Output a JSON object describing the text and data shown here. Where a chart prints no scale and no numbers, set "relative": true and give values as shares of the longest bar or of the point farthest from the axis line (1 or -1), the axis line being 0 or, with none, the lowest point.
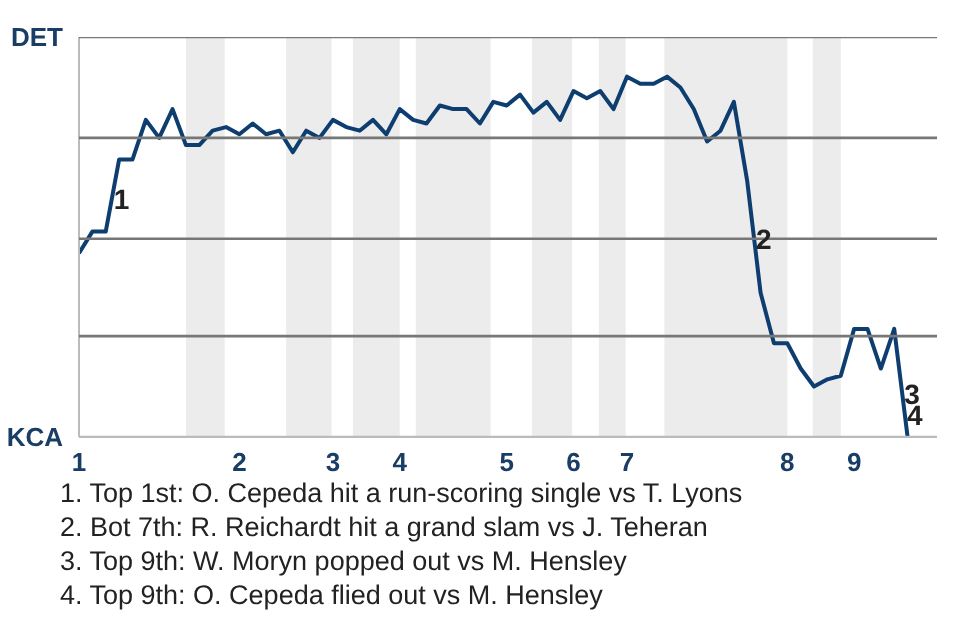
{
  "chart_data": {
    "type": "line",
    "relative": true,
    "categories": [
      "1",
      null,
      null,
      null,
      null,
      null,
      null,
      null,
      null,
      null,
      null,
      null,
      "2",
      null,
      null,
      null,
      null,
      null,
      null,
      "3",
      null,
      null,
      null,
      null,
      "4",
      null,
      null,
      null,
      null,
      null,
      null,
      null,
      "5",
      null,
      null,
      null,
      null,
      "6",
      null,
      null,
      null,
      "7",
      null,
      null,
      null,
      null,
      null,
      null,
      null,
      null,
      null,
      null,
      null,
      "8",
      null,
      null,
      null,
      null,
      "9",
      null,
      null,
      null,
      null
    ],
    "series": [
      {
        "color": "#0e3d70",
        "values": [
          0.51,
          0.57,
          0.57,
          0.77,
          0.77,
          0.88,
          0.83,
          0.91,
          0.81,
          0.81,
          0.85,
          0.86,
          0.84,
          0.87,
          0.84,
          0.85,
          0.79,
          0.85,
          0.83,
          0.88,
          0.86,
          0.85,
          0.88,
          0.84,
          0.91,
          0.88,
          0.87,
          0.92,
          0.91,
          0.91,
          0.87,
          0.93,
          0.92,
          0.95,
          0.9,
          0.93,
          0.88,
          0.96,
          0.94,
          0.96,
          0.91,
          1.0,
          0.98,
          0.98,
          1.0,
          0.97,
          0.91,
          0.82,
          0.85,
          0.93,
          0.71,
          0.4,
          0.26,
          0.26,
          0.19,
          0.14,
          0.16,
          0.17,
          0.3,
          0.3,
          0.19,
          0.3,
          0
        ]
      }
    ],
    "marker": "none",
    "line_style": "solid",
    "ref_lines": [
      {
        "axis": "y",
        "value": 1.11,
        "label": "DET",
        "color": "#777777"
      },
      {
        "axis": "y",
        "value": 0.83,
        "label": null,
        "color": "#777777"
      },
      {
        "axis": "y",
        "value": 0.55,
        "label": null,
        "color": "#777777"
      },
      {
        "axis": "y",
        "value": 0.28,
        "label": null,
        "color": "#777777"
      },
      {
        "axis": "y",
        "value": 0,
        "label": "KCA",
        "color": "#bbbbbb"
      }
    ],
    "annotations": [
      {
        "text": "1",
        "y": 0.66
      },
      {
        "text": "2",
        "y": 0.55
      },
      {
        "text": "3",
        "y": 0.12
      },
      {
        "text": "4",
        "y": 0.06
      },
      "1. Top 1st: O. Cepeda hit a run-scoring single vs T. Lyons",
      "2. Bot 7th: R. Reichardt hit a grand slam vs J. Teheran",
      "3. Top 9th: W. Moryn popped out vs M. Hensley",
      "4. Top 9th: O. Cepeda flied out vs M. Hensley"
    ]
  }
}
